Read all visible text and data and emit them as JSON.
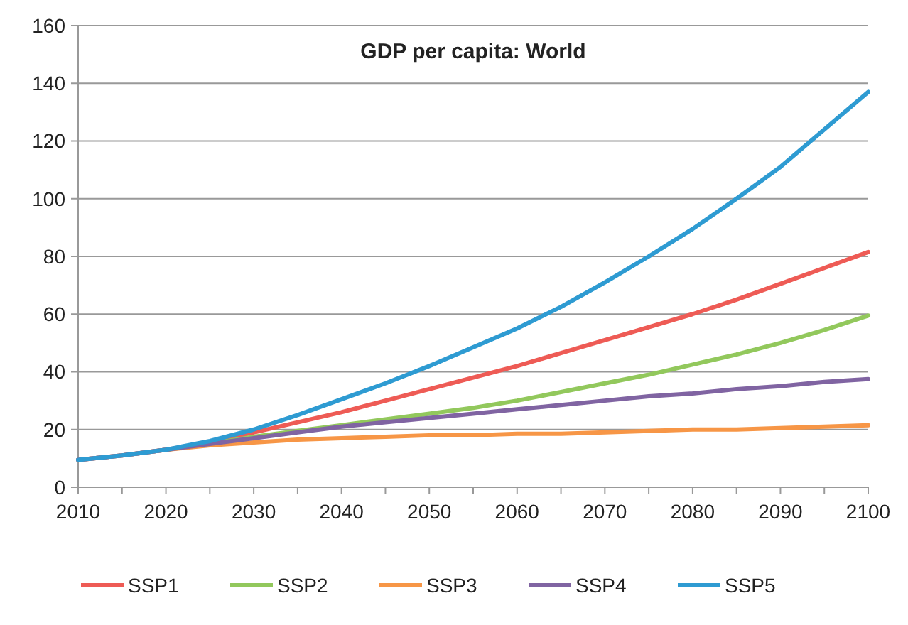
{
  "chart_data": {
    "type": "line",
    "title": "GDP per capita: World",
    "x": [
      2010,
      2015,
      2020,
      2025,
      2030,
      2035,
      2040,
      2045,
      2050,
      2055,
      2060,
      2065,
      2070,
      2075,
      2080,
      2085,
      2090,
      2095,
      2100
    ],
    "series": [
      {
        "name": "SSP1",
        "color": "#ee5b55",
        "values": [
          9.5,
          11,
          13,
          15.5,
          19,
          22.5,
          26,
          30,
          34,
          38,
          42,
          46.5,
          51,
          55.5,
          60,
          65,
          70.5,
          76,
          81.5
        ]
      },
      {
        "name": "SSP2",
        "color": "#92c85c",
        "values": [
          null,
          null,
          13,
          15,
          17.5,
          19.5,
          21.5,
          23.5,
          25.5,
          27.5,
          30,
          33,
          36,
          39,
          42.5,
          46,
          50,
          54.5,
          59.5
        ]
      },
      {
        "name": "SSP3",
        "color": "#f79646",
        "values": [
          9.5,
          11,
          13,
          14.5,
          15.5,
          16.5,
          17,
          17.5,
          18,
          18,
          18.5,
          18.5,
          19,
          19.5,
          20,
          20,
          20.5,
          21,
          21.5
        ]
      },
      {
        "name": "SSP4",
        "color": "#8064a2",
        "values": [
          9.5,
          11,
          13,
          15,
          17,
          19,
          21,
          22.5,
          24,
          25.5,
          27,
          28.5,
          30,
          31.5,
          32.5,
          34,
          35,
          36.5,
          37.5
        ]
      },
      {
        "name": "SSP5",
        "color": "#2e9bd2",
        "values": [
          9.5,
          11,
          13,
          16,
          20,
          25,
          30.5,
          36,
          42,
          48.5,
          55,
          62.5,
          71,
          80,
          89.5,
          100,
          111,
          124,
          137
        ]
      }
    ],
    "xlim": [
      2010,
      2100
    ],
    "ylim": [
      0,
      160
    ],
    "xticks": [
      2010,
      {
        "value": 2015,
        "label": null
      },
      2020,
      {
        "value": 2025,
        "label": null
      },
      2030,
      {
        "value": 2035,
        "label": null
      },
      2040,
      {
        "value": 2045,
        "label": null
      },
      2050,
      {
        "value": 2055,
        "label": null
      },
      2060,
      {
        "value": 2065,
        "label": null
      },
      2070,
      {
        "value": 2075,
        "label": null
      },
      2080,
      {
        "value": 2085,
        "label": null
      },
      2090,
      {
        "value": 2095,
        "label": null
      },
      2100
    ],
    "yticks": [
      0,
      20,
      40,
      60,
      80,
      100,
      120,
      140,
      160
    ],
    "grid": "y",
    "legend": "bottom",
    "marker": "none",
    "line_style": "solid"
  }
}
